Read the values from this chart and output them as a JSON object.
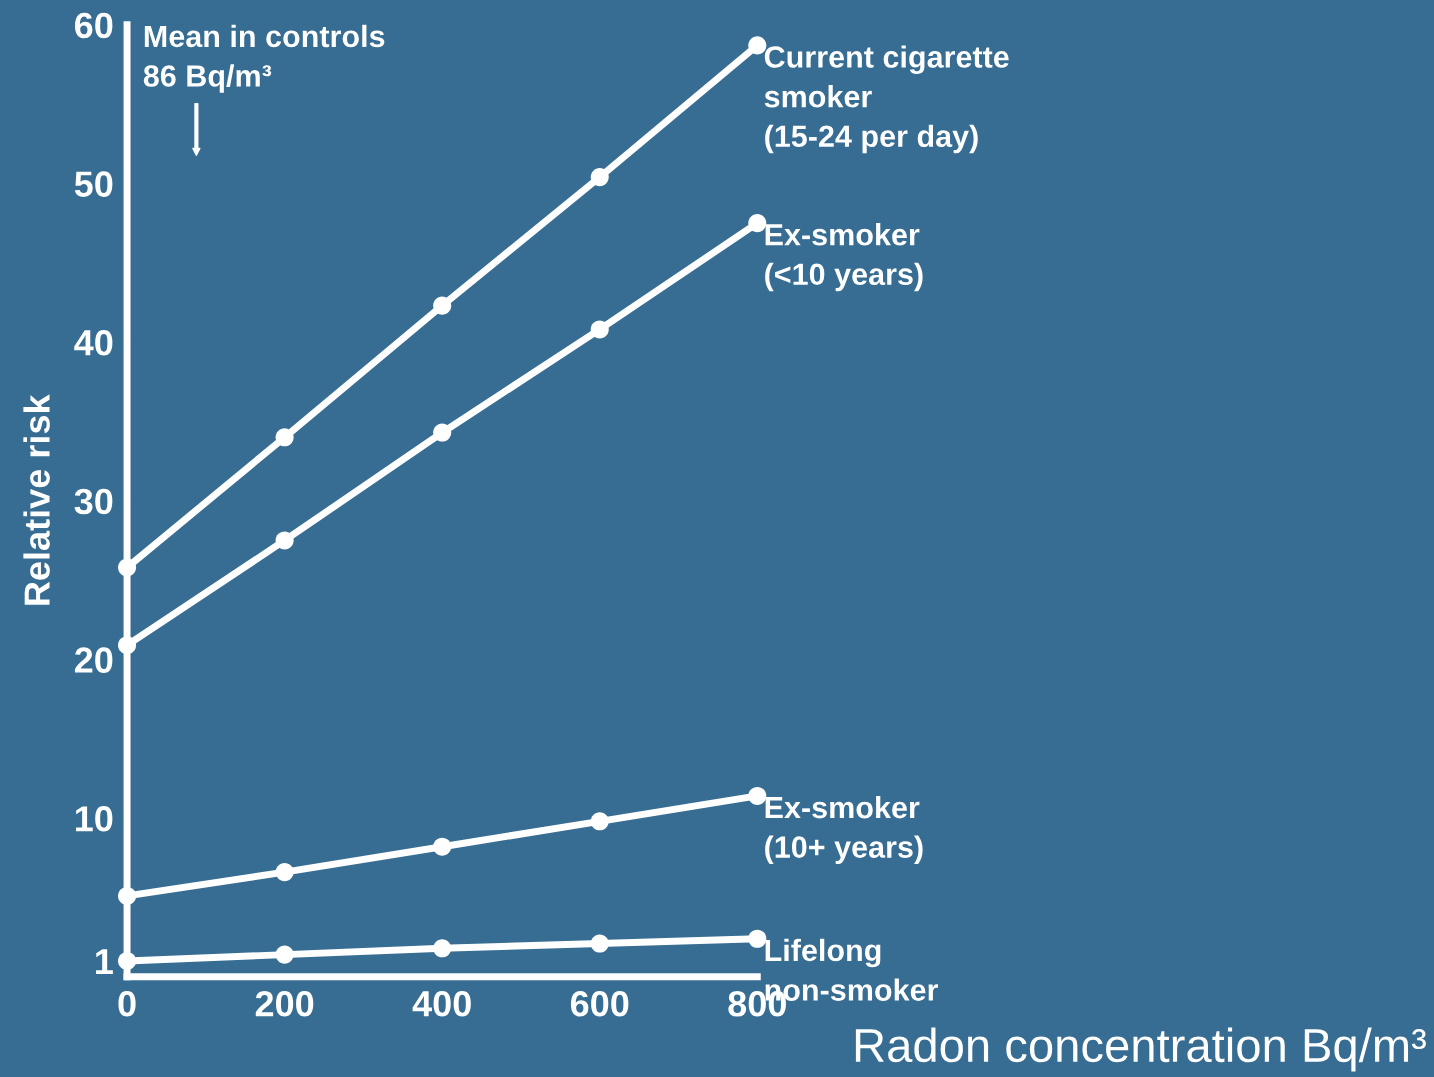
{
  "chart_data": {
    "type": "line",
    "xlabel": "Radon concentration Bq/m³",
    "ylabel": "Relative risk",
    "x": [
      0,
      200,
      400,
      600,
      800
    ],
    "series": [
      {
        "name": "Current cigarette\nsmoker\n(15-24 per day)",
        "color": "#ffffff",
        "values": [
          25.8,
          34.0,
          42.3,
          50.4,
          58.7
        ]
      },
      {
        "name": "Ex-smoker\n(<10 years)",
        "color": "#ffffff",
        "values": [
          20.9,
          27.5,
          34.3,
          40.8,
          47.5
        ]
      },
      {
        "name": "Ex-smoker\n(10+ years)",
        "color": "#ffffff",
        "values": [
          5.1,
          6.6,
          8.2,
          9.8,
          11.4
        ]
      },
      {
        "name": "Lifelong\nnon-smoker",
        "color": "#ffffff",
        "values": [
          1.0,
          1.4,
          1.8,
          2.1,
          2.4
        ]
      }
    ],
    "annotations": [
      "Mean in controls\n86 Bq/m³"
    ],
    "xlim": [
      0,
      800
    ],
    "ylim": [
      0,
      60
    ],
    "xticks": [
      0,
      200,
      400,
      600,
      800
    ],
    "yticks": [
      1,
      10,
      20,
      30,
      40,
      50,
      60
    ],
    "marker": "circle",
    "line_style": "solid",
    "grid": false,
    "legend": false
  }
}
